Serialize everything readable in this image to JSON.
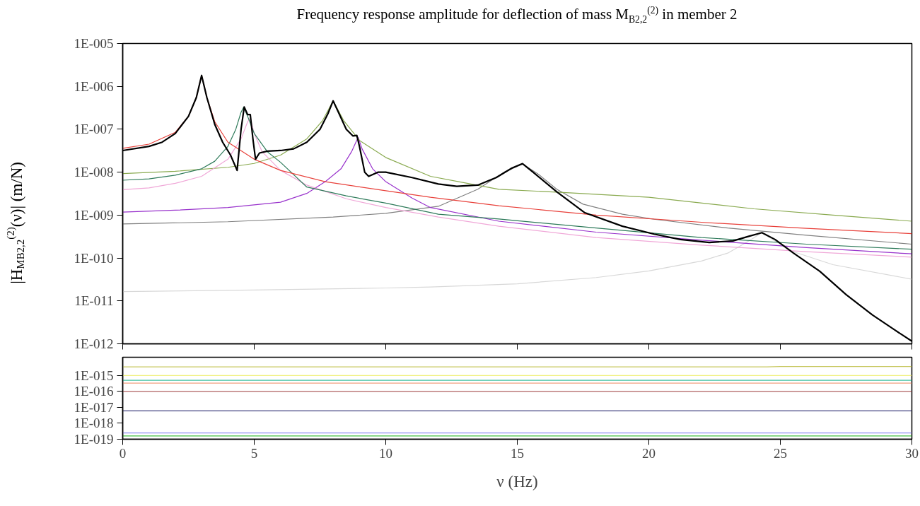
{
  "chart_data": [
    {
      "type": "line",
      "title": "Frequency response amplitude for deflection of mass M$_{B2,2}$$^{(2)}$ in member 2",
      "ylabel": "|H$_{MB2,2}$$^{(2)}$(ν)|  (m/N)",
      "log": true,
      "tick_labels": "y",
      "xlim": [
        0,
        30
      ],
      "xticks": [
        0,
        5,
        10,
        15,
        20,
        25,
        30
      ],
      "ylim": [
        1e-12,
        1e-05
      ],
      "yticks": [
        {
          "value": 1e-12,
          "label": "1E-012"
        },
        {
          "value": 1e-11,
          "label": "1E-011"
        },
        {
          "value": 1e-10,
          "label": "1E-010"
        },
        {
          "value": 1e-09,
          "label": "1E-009"
        },
        {
          "value": 1e-08,
          "label": "1E-008"
        },
        {
          "value": 1e-07,
          "label": "1E-007"
        },
        {
          "value": 1e-06,
          "label": "1E-006"
        },
        {
          "value": 1e-05,
          "label": "1E-005"
        }
      ],
      "series": [
        {
          "color": "#d8d8d8",
          "x": [
            0,
            5,
            10,
            11.7,
            15,
            18,
            20,
            22,
            23,
            23.8,
            24.3,
            24.8,
            25.5,
            27,
            30
          ],
          "values": [
            1.65e-11,
            1.8e-11,
            2e-11,
            2.1e-11,
            2.5e-11,
            3.5e-11,
            5e-11,
            8.5e-11,
            1.3e-10,
            2.5e-10,
            3.9e-10,
            2.5e-10,
            1.4e-10,
            7e-11,
            3.2e-11
          ]
        },
        {
          "color": "#808080",
          "x": [
            0,
            4,
            8,
            10,
            12,
            13.5,
            14.5,
            15.2,
            15.8,
            16.5,
            17.5,
            19,
            20.2,
            23,
            26,
            30
          ],
          "values": [
            6.2e-10,
            7e-10,
            9e-10,
            1.1e-09,
            1.6e-09,
            4e-09,
            1e-08,
            1.55e-08,
            9e-09,
            4e-09,
            1.8e-09,
            1.05e-09,
            8e-10,
            5e-10,
            3.4e-10,
            2.1e-10
          ]
        },
        {
          "color": "#9933cc",
          "x": [
            0,
            2,
            4,
            6,
            7,
            7.7,
            8.3,
            8.7,
            8.95,
            9.1,
            9.5,
            10,
            11,
            11.7,
            14.3,
            18,
            22,
            26,
            30
          ],
          "values": [
            1.17e-09,
            1.3e-09,
            1.5e-09,
            2e-09,
            3.2e-09,
            6e-09,
            1.2e-08,
            3e-08,
            6.5e-08,
            3.5e-08,
            1.2e-08,
            6e-09,
            2.5e-09,
            1.5e-09,
            7.2e-10,
            4e-10,
            2.6e-10,
            1.75e-10,
            1.25e-10
          ]
        },
        {
          "color": "#8aaa50",
          "x": [
            0,
            2,
            4,
            5,
            6,
            7,
            7.6,
            8.0,
            8.4,
            9,
            10,
            11.7,
            14.3,
            17,
            20,
            24,
            27,
            30
          ],
          "values": [
            9.3e-09,
            1.05e-08,
            1.3e-08,
            1.6e-08,
            2.5e-08,
            6e-08,
            1.6e-07,
            4.6e-07,
            1.6e-07,
            5.5e-08,
            2.2e-08,
            8e-09,
            4e-09,
            3.3e-09,
            2.6e-09,
            1.4e-09,
            1e-09,
            7.2e-10
          ]
        },
        {
          "color": "#f0a8d8",
          "x": [
            0,
            1,
            2,
            3,
            4,
            4.5,
            4.75,
            4.85,
            5,
            5.3,
            6,
            7,
            8.5,
            10,
            12,
            14.3,
            18,
            22,
            26,
            30
          ],
          "values": [
            3.9e-09,
            4.3e-09,
            5.5e-09,
            8e-09,
            2e-08,
            6e-08,
            1.5e-07,
            1.8e-07,
            8e-08,
            3e-08,
            1.1e-08,
            5e-09,
            2.4e-09,
            1.5e-09,
            9e-10,
            5.5e-10,
            3e-10,
            2e-10,
            1.4e-10,
            1.05e-10
          ]
        },
        {
          "color": "#2e7a5a",
          "x": [
            0,
            1,
            2,
            3,
            3.5,
            4,
            4.3,
            4.5,
            4.6,
            4.75,
            5,
            5.5,
            6,
            7,
            8.5,
            10,
            12,
            14.3,
            18,
            22,
            26,
            30
          ],
          "values": [
            6.5e-09,
            7e-09,
            8.5e-09,
            1.2e-08,
            1.8e-08,
            4e-08,
            1e-07,
            2.5e-07,
            3.3e-07,
            2e-07,
            8e-08,
            3e-08,
            1.7e-08,
            4.5e-09,
            2.8e-09,
            1.9e-09,
            1.05e-09,
            8.1e-10,
            5e-10,
            3e-10,
            2.1e-10,
            1.6e-10
          ]
        },
        {
          "color": "#e8403a",
          "x": [
            0,
            1,
            2,
            2.5,
            2.8,
            3.0,
            3.2,
            3.5,
            4,
            5,
            6,
            7.7,
            10,
            11.7,
            14.3,
            18,
            22,
            26,
            30
          ],
          "values": [
            3.6e-08,
            4.5e-08,
            8.5e-08,
            2e-07,
            5.5e-07,
            1.8e-06,
            5.5e-07,
            1.5e-07,
            5e-08,
            2e-08,
            1.1e-08,
            6e-09,
            3.7e-09,
            2.6e-09,
            1.65e-09,
            1e-09,
            6.8e-10,
            4.9e-10,
            3.7e-10
          ]
        },
        {
          "color": "#000000",
          "x": [
            0,
            1,
            1.5,
            2,
            2.5,
            2.8,
            3.0,
            3.2,
            3.5,
            3.8,
            4.1,
            4.35,
            4.5,
            4.62,
            4.75,
            4.85,
            4.95,
            5.05,
            5.2,
            5.5,
            6,
            6.5,
            7,
            7.5,
            7.8,
            8.0,
            8.2,
            8.5,
            8.75,
            8.9,
            9.0,
            9.2,
            9.35,
            9.7,
            10,
            11,
            12,
            12.7,
            13.5,
            14.2,
            14.8,
            15.2,
            15.6,
            16.5,
            17.55,
            19,
            20.2,
            21.2,
            22.3,
            23.2,
            23.8,
            24.3,
            24.8,
            25.5,
            26.5,
            27.5,
            28.5,
            29.3,
            30
          ],
          "values": [
            3.2e-08,
            4e-08,
            5e-08,
            8e-08,
            2e-07,
            5.5e-07,
            1.8e-06,
            5.5e-07,
            1.3e-07,
            5e-08,
            2.5e-08,
            1.1e-08,
            1e-07,
            3.3e-07,
            2.2e-07,
            2.2e-07,
            6e-08,
            2e-08,
            2.8e-08,
            3.1e-08,
            3.2e-08,
            3.5e-08,
            5e-08,
            1e-07,
            2.3e-07,
            4.6e-07,
            2.5e-07,
            1e-07,
            7e-08,
            7.2e-08,
            4e-08,
            1e-08,
            8e-09,
            1e-08,
            1e-08,
            7.5e-09,
            5.3e-09,
            4.7e-09,
            5e-09,
            7.5e-09,
            1.25e-08,
            1.58e-08,
            1e-08,
            3.5e-09,
            1.15e-09,
            5.5e-10,
            3.6e-10,
            2.7e-10,
            2.3e-10,
            2.5e-10,
            3.2e-10,
            3.9e-10,
            2.7e-10,
            1.3e-10,
            4.9e-11,
            1.4e-11,
            4.7e-12,
            2.2e-12,
            1.15e-12
          ]
        }
      ]
    },
    {
      "type": "line",
      "xlabel": "ν (Hz)",
      "log": true,
      "xlim": [
        0,
        30
      ],
      "xticks": [
        0,
        5,
        10,
        15,
        20,
        25,
        30
      ],
      "ylim": [
        1e-19,
        1.4e-14
      ],
      "yticks": [
        {
          "value": 1e-19,
          "label": "1E-019"
        },
        {
          "value": 1e-18,
          "label": "1E-018"
        },
        {
          "value": 1e-17,
          "label": "1E-017"
        },
        {
          "value": 1e-16,
          "label": "1E-016"
        },
        {
          "value": 1e-15,
          "label": "1E-015"
        }
      ],
      "series": [
        {
          "color": "#c8c860",
          "x": [
            0,
            24.5,
            25,
            30
          ],
          "values": [
            3.5e-15,
            3.5e-15,
            3.7e-15,
            3.7e-15
          ]
        },
        {
          "color": "#f0f080",
          "x": [
            0,
            30
          ],
          "values": [
            1e-15,
            1e-15
          ]
        },
        {
          "color": "#40c0a0",
          "x": [
            0,
            30
          ],
          "values": [
            5e-16,
            5e-16
          ]
        },
        {
          "color": "#f0a080",
          "x": [
            0,
            30
          ],
          "values": [
            3.3e-16,
            3.3e-16
          ]
        },
        {
          "color": "#b06060",
          "x": [
            0,
            30
          ],
          "values": [
            1e-16,
            1e-16
          ]
        },
        {
          "color": "#404080",
          "x": [
            0,
            30
          ],
          "values": [
            6e-18,
            6e-18
          ]
        },
        {
          "color": "#9090f0",
          "x": [
            0,
            30
          ],
          "values": [
            2.5e-19,
            2.5e-19
          ]
        },
        {
          "color": "#40c040",
          "x": [
            0,
            30
          ],
          "values": [
            1.6e-19,
            1.6e-19
          ]
        }
      ]
    }
  ]
}
